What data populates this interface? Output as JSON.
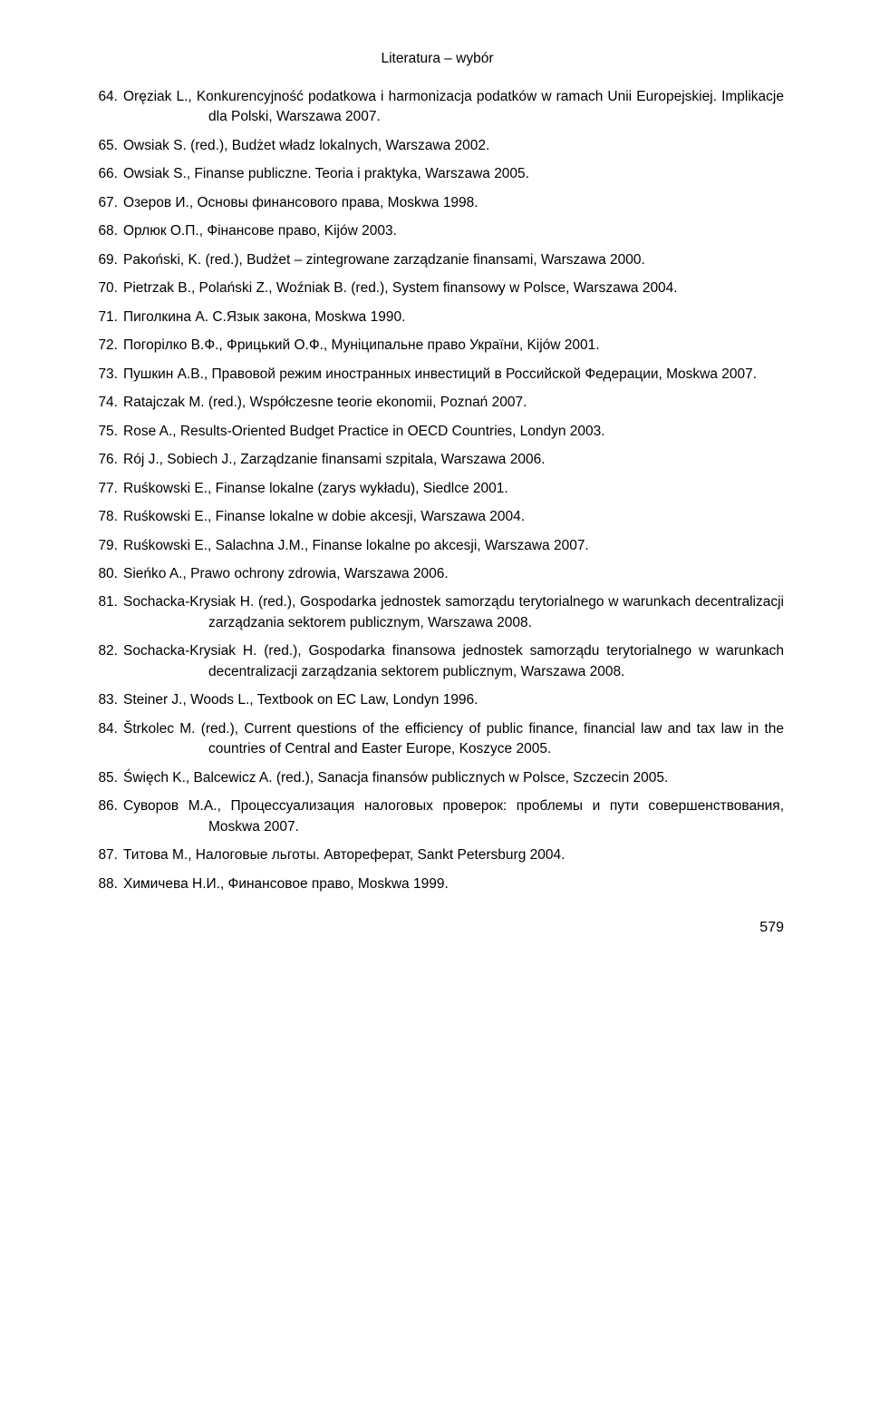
{
  "header": {
    "title": "Literatura – wybór"
  },
  "entries": [
    {
      "n": "64.",
      "text": "Oręziak L., Konkurencyjność podatkowa i harmonizacja podatków w ramach Unii Europejskiej. Implikacje dla Polski, Warszawa 2007."
    },
    {
      "n": "65.",
      "text": "Owsiak S. (red.), Budżet władz lokalnych, Warszawa 2002."
    },
    {
      "n": "66.",
      "text": "Owsiak S., Finanse publiczne. Teoria i praktyka, Warszawa 2005."
    },
    {
      "n": "67.",
      "text": "Озеров И., Основы финансового права, Moskwa 1998."
    },
    {
      "n": "68.",
      "text": "Орлюк О.П., Фінансове право, Kijów 2003."
    },
    {
      "n": "69.",
      "text": "Pakoński, K. (red.), Budżet – zintegrowane zarządzanie finansami, Warszawa 2000."
    },
    {
      "n": "70.",
      "text": "Pietrzak B., Polański Z., Woźniak B. (red.), System finansowy w Polsce, Warszawa 2004."
    },
    {
      "n": "71.",
      "text": "Пиголкина А. С.Язык закона, Moskwa 1990."
    },
    {
      "n": "72.",
      "text": "Погорілко В.Ф., Фрицький О.Ф., Муніципальне право України, Kijów 2001."
    },
    {
      "n": "73.",
      "text": "Пушкин А.В., Правовой режим иностранных инвестиций в Российской Федерации, Moskwa 2007."
    },
    {
      "n": "74.",
      "text": "Ratajczak M. (red.), Współczesne teorie ekonomii, Poznań 2007."
    },
    {
      "n": "75.",
      "text": "Rose A., Results-Oriented Budget Practice in OECD Countries, Londyn 2003."
    },
    {
      "n": "76.",
      "text": "Rój J., Sobiech J., Zarządzanie finansami szpitala, Warszawa 2006."
    },
    {
      "n": "77.",
      "text": "Ruśkowski E., Finanse lokalne (zarys wykładu), Siedlce 2001."
    },
    {
      "n": "78.",
      "text": "Ruśkowski E., Finanse lokalne w dobie akcesji, Warszawa 2004."
    },
    {
      "n": "79.",
      "text": "Ruśkowski E., Salachna J.M., Finanse lokalne po akcesji, Warszawa 2007."
    },
    {
      "n": "80.",
      "text": "Sieńko A., Prawo ochrony zdrowia, Warszawa 2006."
    },
    {
      "n": "81.",
      "text": "Sochacka-Krysiak H. (red.), Gospodarka jednostek samorządu terytorialnego w warunkach decentralizacji zarządzania sektorem publicznym, Warszawa 2008."
    },
    {
      "n": "82.",
      "text": "Sochacka-Krysiak H. (red.), Gospodarka finansowa jednostek samorządu terytorialnego w warunkach decentralizacji zarządzania sektorem publicznym, Warszawa 2008."
    },
    {
      "n": "83.",
      "text": "Steiner J., Woods L., Textbook on EC Law, Londyn 1996."
    },
    {
      "n": "84.",
      "text": "Štrkolec M. (red.), Current questions of the efficiency of public finance, financial law and tax law in the countries of Central and Easter Europe, Koszyce 2005."
    },
    {
      "n": "85.",
      "text": "Święch K., Balcewicz A. (red.), Sanacja finansów publicznych w Polsce, Szczecin 2005."
    },
    {
      "n": "86.",
      "text": "Суворов М.А., Процессуализация налоговых проверок: проблемы и пути совершенствования, Moskwa 2007."
    },
    {
      "n": "87.",
      "text": "Титова М., Налоговые льготы. Автореферат, Sankt Petersburg 2004."
    },
    {
      "n": "88.",
      "text": "Химичева Н.И., Финансовое право, Moskwa 1999."
    }
  ],
  "page_number": "579",
  "colors": {
    "text": "#000000",
    "background": "#ffffff"
  },
  "typography": {
    "body_fontsize_pt": 11.5,
    "header_fontsize_pt": 11.5,
    "pagenum_fontsize_pt": 12
  }
}
